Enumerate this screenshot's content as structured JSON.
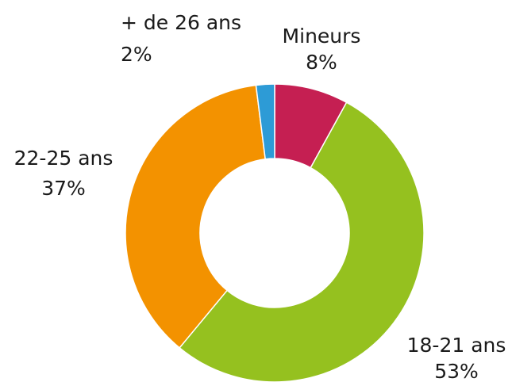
{
  "chart_data": {
    "type": "pie",
    "categories": [
      "Mineurs",
      "18-21 ans",
      "22-25 ans",
      "+ de 26 ans"
    ],
    "values": [
      8,
      53,
      37,
      2
    ],
    "value_labels": [
      "8%",
      "53%",
      "37%",
      "2%"
    ],
    "colors": [
      "#c51f52",
      "#95c11f",
      "#f39200",
      "#2d9bd6"
    ]
  }
}
